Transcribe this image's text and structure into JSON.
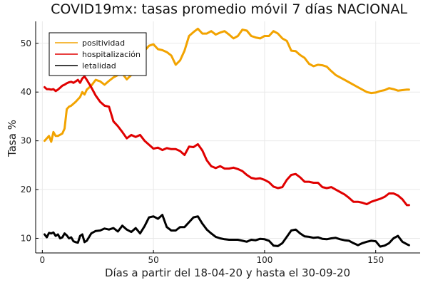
{
  "chart_data": {
    "type": "line",
    "title": "COVID19mx: tasas promedio móvil 7 días NACIONAL",
    "xlabel": "Días a partir del 18-04-20 y hasta el 30-09-20",
    "ylabel": "Tasa %",
    "xlim": [
      -3,
      170
    ],
    "ylim": [
      7,
      54.5
    ],
    "xticks": [
      0,
      50,
      100,
      150
    ],
    "yticks": [
      10,
      20,
      30,
      40,
      50
    ],
    "grid": true,
    "legend_position": "top-left",
    "series": [
      {
        "name": "positividad",
        "color": "#F2A300",
        "x": [
          1,
          3,
          4,
          5,
          6,
          7,
          9,
          10,
          11,
          12,
          13,
          15,
          17,
          18,
          19,
          20,
          22,
          24,
          26,
          28,
          30,
          32,
          34,
          36,
          38,
          40,
          42,
          44,
          46,
          48,
          50,
          52,
          54,
          56,
          58,
          60,
          62,
          64,
          66,
          68,
          70,
          72,
          74,
          76,
          78,
          80,
          82,
          84,
          86,
          88,
          90,
          92,
          94,
          96,
          98,
          100,
          102,
          104,
          106,
          108,
          110,
          112,
          114,
          116,
          118,
          120,
          122,
          124,
          126,
          128,
          130,
          132,
          134,
          136,
          138,
          140,
          142,
          144,
          146,
          148,
          150,
          152,
          154,
          156,
          158,
          160,
          162,
          164,
          165
        ],
        "y": [
          30,
          31,
          29.8,
          31.8,
          31,
          31,
          31.5,
          32.5,
          36.5,
          37,
          37.2,
          38,
          39,
          40,
          39.5,
          40.5,
          41.3,
          42.5,
          42.2,
          41.5,
          42.3,
          43,
          43.5,
          43.8,
          42.6,
          43.5,
          44.5,
          47.5,
          48.5,
          49.5,
          49.8,
          48.8,
          48.6,
          48.2,
          47.5,
          45.6,
          46.5,
          48.5,
          51.5,
          52.3,
          53,
          52,
          52,
          52.5,
          51.8,
          52.2,
          52.5,
          51.8,
          51,
          51.5,
          52.8,
          52.6,
          51.5,
          51.2,
          51,
          51.5,
          51.5,
          52.5,
          52,
          51,
          50.5,
          48.5,
          48.4,
          47.6,
          47,
          45.8,
          45.3,
          45.6,
          45.5,
          45.2,
          44.3,
          43.5,
          43,
          42.5,
          42,
          41.5,
          41,
          40.5,
          40,
          39.8,
          39.9,
          40.2,
          40.4,
          40.8,
          40.6,
          40.3,
          40.4,
          40.5,
          40.5
        ]
      },
      {
        "name": "hospitalización",
        "color": "#E00000",
        "x": [
          1,
          2,
          3,
          4,
          5,
          6,
          7,
          8,
          9,
          10,
          11,
          12,
          13,
          14,
          15,
          16,
          17,
          18,
          19,
          20,
          22,
          24,
          26,
          28,
          30,
          32,
          34,
          36,
          38,
          40,
          42,
          44,
          46,
          48,
          50,
          52,
          54,
          56,
          58,
          60,
          62,
          64,
          66,
          68,
          70,
          72,
          74,
          76,
          78,
          80,
          82,
          84,
          86,
          88,
          90,
          92,
          94,
          96,
          98,
          100,
          102,
          104,
          106,
          108,
          110,
          112,
          114,
          116,
          118,
          120,
          122,
          124,
          126,
          128,
          130,
          132,
          134,
          136,
          138,
          140,
          142,
          144,
          146,
          148,
          150,
          152,
          154,
          156,
          158,
          160,
          162,
          164,
          165
        ],
        "y": [
          41,
          40.6,
          40.6,
          40.5,
          40.6,
          40.2,
          40.5,
          40.9,
          41.3,
          41.5,
          41.8,
          42,
          42.1,
          41.9,
          42.2,
          42.5,
          41.9,
          42.8,
          43.2,
          42.5,
          41,
          39.3,
          38,
          37.2,
          37,
          34,
          33,
          31.8,
          30.5,
          31.2,
          30.8,
          31.2,
          30,
          29.2,
          28.4,
          28.6,
          28.1,
          28.5,
          28.3,
          28.3,
          27.9,
          27.1,
          28.8,
          28.7,
          29.3,
          28,
          26,
          24.8,
          24.4,
          24.8,
          24.3,
          24.3,
          24.5,
          24.2,
          23.8,
          23,
          22.4,
          22.2,
          22.3,
          22,
          21.5,
          20.6,
          20.3,
          20.5,
          22,
          23,
          23.2,
          22.5,
          21.6,
          21.6,
          21.4,
          21.4,
          20.5,
          20.3,
          20.5,
          20,
          19.5,
          19,
          18.3,
          17.5,
          17.5,
          17.3,
          17,
          17.5,
          17.8,
          18.1,
          18.5,
          19.2,
          19.2,
          18.8,
          18,
          16.8,
          16.8
        ]
      },
      {
        "name": "letalidad",
        "color": "#000000",
        "x": [
          1,
          2,
          3,
          4,
          5,
          6,
          7,
          8,
          9,
          10,
          11,
          12,
          13,
          14,
          15,
          16,
          17,
          18,
          19,
          20,
          22,
          24,
          26,
          28,
          30,
          32,
          34,
          36,
          38,
          40,
          42,
          44,
          46,
          48,
          50,
          52,
          54,
          56,
          58,
          60,
          62,
          64,
          66,
          68,
          70,
          72,
          74,
          76,
          78,
          80,
          82,
          84,
          86,
          88,
          90,
          92,
          94,
          96,
          98,
          100,
          102,
          104,
          106,
          108,
          110,
          112,
          114,
          116,
          118,
          120,
          122,
          124,
          126,
          128,
          130,
          132,
          134,
          136,
          138,
          140,
          142,
          144,
          146,
          148,
          150,
          152,
          154,
          156,
          158,
          160,
          162,
          164,
          165
        ],
        "y": [
          10.8,
          10.2,
          11.1,
          11,
          11.2,
          10.5,
          10.8,
          10,
          10.2,
          11,
          10.6,
          10,
          10.2,
          9.4,
          9.2,
          9.1,
          10.5,
          10.8,
          9.2,
          9.5,
          11,
          11.5,
          11.6,
          12,
          11.8,
          12.1,
          11.4,
          12.6,
          11.8,
          11.3,
          12.1,
          11,
          12.5,
          14.3,
          14.5,
          14,
          14.8,
          12.3,
          11.6,
          11.6,
          12.3,
          12.3,
          13.3,
          14.3,
          14.5,
          13,
          11.8,
          11,
          10.3,
          10,
          9.8,
          9.7,
          9.7,
          9.7,
          9.5,
          9.3,
          9.7,
          9.6,
          9.9,
          9.8,
          9.5,
          8.5,
          8.4,
          9,
          10.3,
          11.6,
          11.8,
          11,
          10.4,
          10.3,
          10.1,
          10.2,
          9.9,
          9.8,
          10,
          10.1,
          9.8,
          9.6,
          9.5,
          9,
          8.6,
          9,
          9.3,
          9.5,
          9.4,
          8.3,
          8.5,
          9,
          10,
          10.5,
          9.3,
          8.8,
          8.6
        ]
      }
    ]
  }
}
